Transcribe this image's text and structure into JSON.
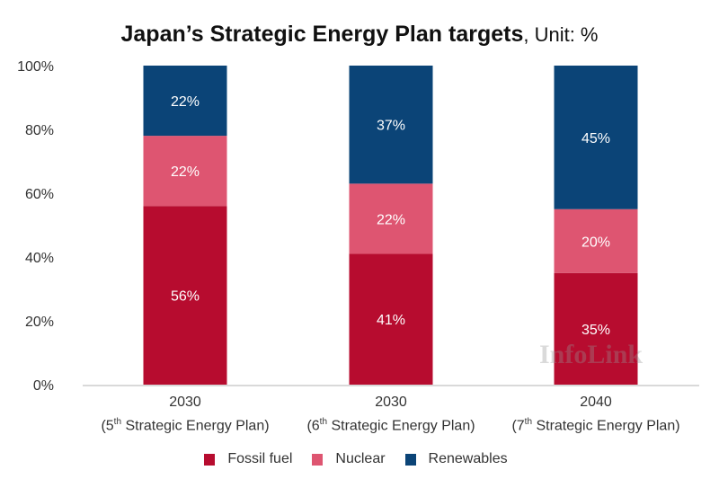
{
  "chart_data": {
    "type": "bar",
    "stacked": true,
    "title": "Japan’s Strategic Energy Plan targets",
    "unit_label": ", Unit: %",
    "categories": [
      {
        "year": "2030",
        "num": "(5",
        "ord": "th",
        "rest": " Strategic Energy Plan)"
      },
      {
        "year": "2030",
        "num": "(6",
        "ord": "th",
        "rest": " Strategic Energy Plan)"
      },
      {
        "year": "2040",
        "num": "(7",
        "ord": "th",
        "rest": " Strategic Energy Plan)"
      }
    ],
    "series": [
      {
        "name": "Fossil fuel",
        "color": "#b70c2f",
        "values": [
          56,
          41,
          35
        ]
      },
      {
        "name": "Nuclear",
        "color": "#de5571",
        "values": [
          22,
          22,
          20
        ]
      },
      {
        "name": "Renewables",
        "color": "#0b4477",
        "values": [
          22,
          37,
          45
        ]
      }
    ],
    "ylim": [
      0,
      100
    ],
    "yticks": [
      "0%",
      "20%",
      "40%",
      "60%",
      "80%",
      "100%"
    ],
    "grid": false,
    "legend": "bottom",
    "watermark": "InfoLink"
  }
}
